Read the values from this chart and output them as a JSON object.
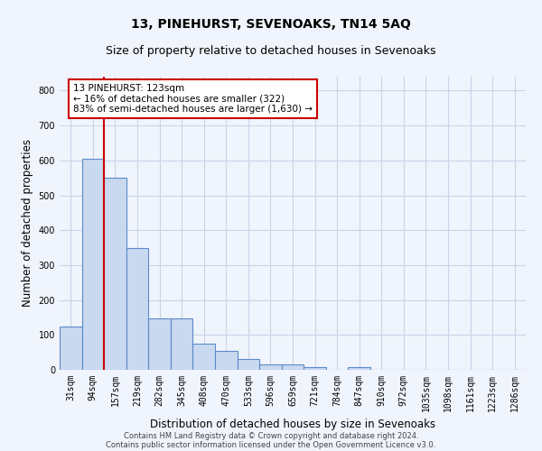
{
  "title": "13, PINEHURST, SEVENOAKS, TN14 5AQ",
  "subtitle": "Size of property relative to detached houses in Sevenoaks",
  "xlabel": "Distribution of detached houses by size in Sevenoaks",
  "ylabel": "Number of detached properties",
  "categories": [
    "31sqm",
    "94sqm",
    "157sqm",
    "219sqm",
    "282sqm",
    "345sqm",
    "408sqm",
    "470sqm",
    "533sqm",
    "596sqm",
    "659sqm",
    "721sqm",
    "784sqm",
    "847sqm",
    "910sqm",
    "972sqm",
    "1035sqm",
    "1098sqm",
    "1161sqm",
    "1223sqm",
    "1286sqm"
  ],
  "values": [
    125,
    605,
    550,
    350,
    148,
    148,
    75,
    55,
    32,
    15,
    15,
    8,
    0,
    8,
    0,
    0,
    0,
    0,
    0,
    0,
    0
  ],
  "bar_color": "#c9d9f0",
  "bar_edge_color": "#5b8ac9",
  "grid_color": "#c8d4e8",
  "background_color": "#f0f4fc",
  "vline_x": 1.5,
  "vline_color": "#cc0000",
  "annotation_text": "13 PINEHURST: 123sqm\n← 16% of detached houses are smaller (322)\n83% of semi-detached houses are larger (1,630) →",
  "annotation_box_color": "#ffffff",
  "annotation_box_edge": "#cc0000",
  "ylim": [
    0,
    840
  ],
  "yticks": [
    0,
    100,
    200,
    300,
    400,
    500,
    600,
    700,
    800
  ],
  "footer1": "Contains HM Land Registry data © Crown copyright and database right 2024.",
  "footer2": "Contains public sector information licensed under the Open Government Licence v3.0.",
  "title_fontsize": 10,
  "subtitle_fontsize": 9,
  "label_fontsize": 8.5,
  "tick_fontsize": 7,
  "annot_fontsize": 7.5
}
